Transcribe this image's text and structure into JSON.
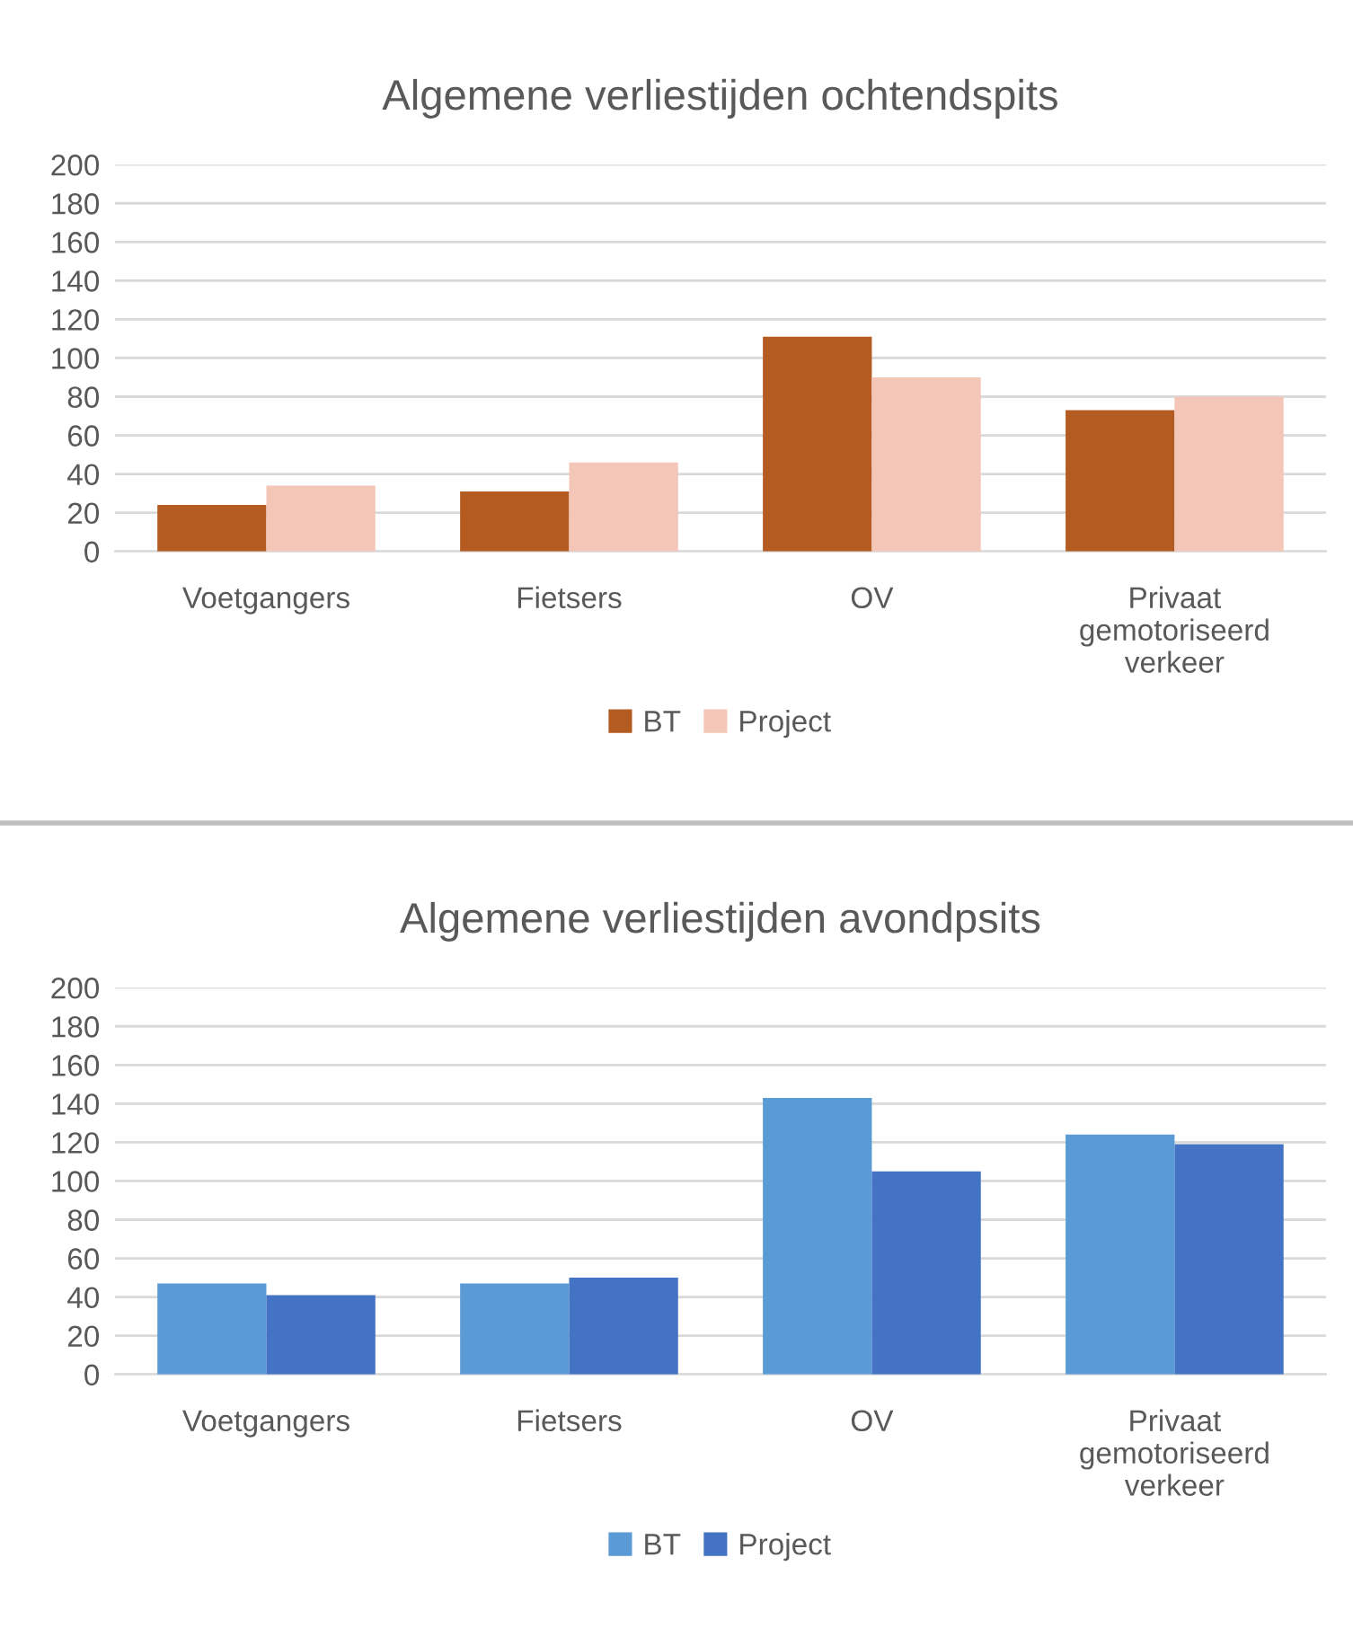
{
  "chart_data": [
    {
      "type": "bar",
      "title": "Algemene verliestijden ochtendspits",
      "categories": [
        "Voetgangers",
        "Fietsers",
        "OV",
        "Privaat gemotoriseerd verkeer"
      ],
      "series": [
        {
          "name": "BT",
          "color": "#b35b21",
          "values": [
            24,
            31,
            111,
            73
          ]
        },
        {
          "name": "Project",
          "color": "#f4c6b7",
          "values": [
            34,
            46,
            90,
            80
          ]
        }
      ],
      "ylim": [
        0,
        200
      ],
      "yticks": [
        0,
        20,
        40,
        60,
        80,
        100,
        120,
        140,
        160,
        180,
        200
      ],
      "grid": "y",
      "legend": "bottom"
    },
    {
      "type": "bar",
      "title": "Algemene verliestijden avondpsits",
      "categories": [
        "Voetgangers",
        "Fietsers",
        "OV",
        "Privaat gemotoriseerd verkeer"
      ],
      "series": [
        {
          "name": "BT",
          "color": "#5b9bd5",
          "values": [
            47,
            47,
            143,
            124
          ]
        },
        {
          "name": "Project",
          "color": "#4472c4",
          "values": [
            41,
            50,
            105,
            119
          ]
        }
      ],
      "ylim": [
        0,
        200
      ],
      "yticks": [
        0,
        20,
        40,
        60,
        80,
        100,
        120,
        140,
        160,
        180,
        200
      ],
      "grid": "y",
      "legend": "bottom"
    }
  ]
}
